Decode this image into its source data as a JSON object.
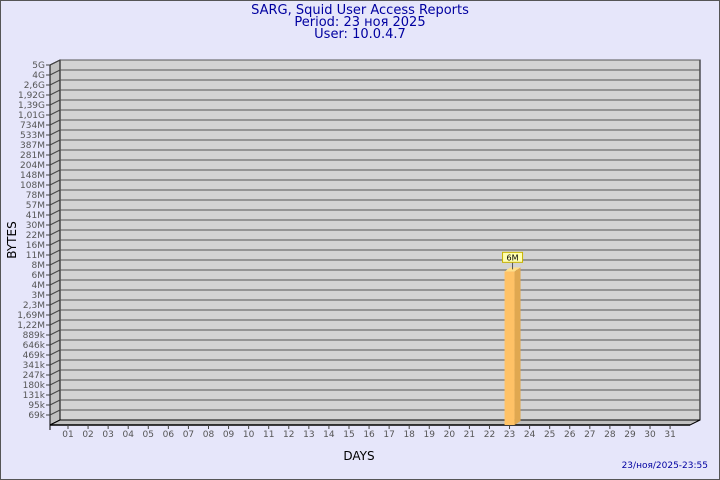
{
  "chart_data": {
    "type": "bar",
    "title": "SARG, Squid User Access Reports",
    "subtitle": [
      "Period: 23 ноя 2025",
      "User: 10.0.4.7"
    ],
    "xlabel": "DAYS",
    "ylabel": "BYTES",
    "categories": [
      "01",
      "02",
      "03",
      "04",
      "05",
      "06",
      "07",
      "08",
      "09",
      "10",
      "11",
      "12",
      "13",
      "14",
      "15",
      "16",
      "17",
      "18",
      "19",
      "20",
      "21",
      "22",
      "23",
      "24",
      "25",
      "26",
      "27",
      "28",
      "29",
      "30",
      "31"
    ],
    "y_tick_labels": [
      "5G",
      "4G",
      "2,6G",
      "1,92G",
      "1,39G",
      "1,01G",
      "734M",
      "533M",
      "387M",
      "281M",
      "204M",
      "148M",
      "108M",
      "78M",
      "57M",
      "41M",
      "30M",
      "22M",
      "16M",
      "11M",
      "8M",
      "6M",
      "4M",
      "3M",
      "2,3M",
      "1,69M",
      "1,22M",
      "889k",
      "646k",
      "469k",
      "341k",
      "247k",
      "180k",
      "131k",
      "95k",
      "69k"
    ],
    "y_scale": "log",
    "grid": true,
    "series": [
      {
        "values": [
          null,
          null,
          null,
          null,
          null,
          null,
          null,
          null,
          null,
          null,
          null,
          null,
          null,
          null,
          null,
          null,
          null,
          null,
          null,
          null,
          null,
          null,
          6000000,
          null,
          null,
          null,
          null,
          null,
          null,
          null,
          null
        ],
        "data_labels": {
          "23": "6M"
        }
      }
    ],
    "colors": {
      "bar": "#ffc266",
      "bar_side": "#e0a850",
      "bar_top": "#ffe08a",
      "plot": "#d3d3d3",
      "background": "#e6e6fa",
      "title": "#0000a0",
      "label_box": "#ffffb0"
    }
  },
  "footer": "23/ноя/2025-23:55"
}
